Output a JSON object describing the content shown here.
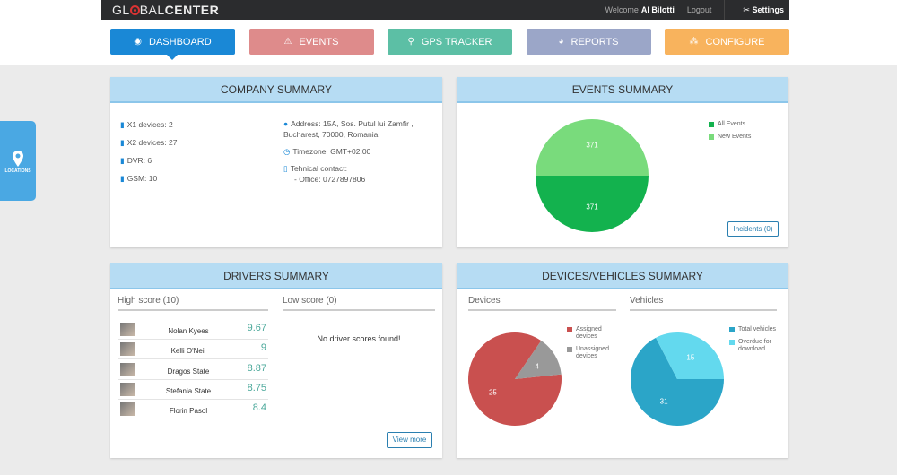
{
  "header": {
    "logo": "GLOBALCENTER",
    "logo_a": "GL",
    "logo_b": "BAL",
    "logo_c": "CENTER",
    "welcome": "Welcome",
    "user": "Al Bilotti",
    "logout": "Logout",
    "settings": "Settings"
  },
  "nav": [
    {
      "label": "DASHBOARD",
      "icon": "dashboard-icon",
      "color": "#1a88d6",
      "active": true
    },
    {
      "label": "EVENTS",
      "icon": "warning-icon",
      "color": "#de8b8b"
    },
    {
      "label": "GPS TRACKER",
      "icon": "map-pin-icon",
      "color": "#5cbfa5"
    },
    {
      "label": "REPORTS",
      "icon": "pie-chart-icon",
      "color": "#9ba6c8"
    },
    {
      "label": "CONFIGURE",
      "icon": "sitemap-icon",
      "color": "#f8b35d"
    }
  ],
  "side": {
    "locations": "LOCATIONS"
  },
  "company": {
    "title": "COMPANY SUMMARY",
    "devices": [
      "X1 devices: 2",
      "X2 devices: 27",
      "DVR: 6",
      "GSM: 10"
    ],
    "address1": "Address: 15A, Sos. Putul lui Zamfir ,",
    "address2": "Bucharest, 70000, Romania",
    "timezone": "Timezone: GMT+02:00",
    "contact": "Tehnical contact:",
    "office": "- Office: 0727897806"
  },
  "events": {
    "title": "EVENTS SUMMARY",
    "incidents": "Incidents (0)"
  },
  "drivers": {
    "title": "DRIVERS SUMMARY",
    "high": "High score (10)",
    "low": "Low score (0)",
    "empty": "No driver scores found!",
    "view_more": "View more",
    "list": [
      {
        "name": "Nolan Kyees",
        "score": "9.67"
      },
      {
        "name": "Kelli O'Neil",
        "score": "9"
      },
      {
        "name": "Dragos State",
        "score": "8.87"
      },
      {
        "name": "Stefania State",
        "score": "8.75"
      },
      {
        "name": "Florin Pasol",
        "score": "8.4"
      }
    ]
  },
  "devsum": {
    "title": "DEVICES/VEHICLES SUMMARY",
    "devices": "Devices",
    "vehicles": "Vehicles"
  },
  "chart_data": [
    {
      "type": "pie",
      "series": [
        {
          "name": "All Events",
          "value": 371,
          "color": "#13b24e"
        },
        {
          "name": "New Events",
          "value": 371,
          "color": "#79db7c"
        }
      ]
    },
    {
      "type": "pie",
      "series": [
        {
          "name": "Assigned devices",
          "value": 25,
          "color": "#c9504f"
        },
        {
          "name": "Unassigned devices",
          "value": 4,
          "color": "#999999"
        }
      ]
    },
    {
      "type": "pie",
      "series": [
        {
          "name": "Total vehicles",
          "value": 31,
          "color": "#2ba5c8"
        },
        {
          "name": "Overdue for download",
          "value": 15,
          "color": "#63d9ee"
        }
      ]
    }
  ]
}
